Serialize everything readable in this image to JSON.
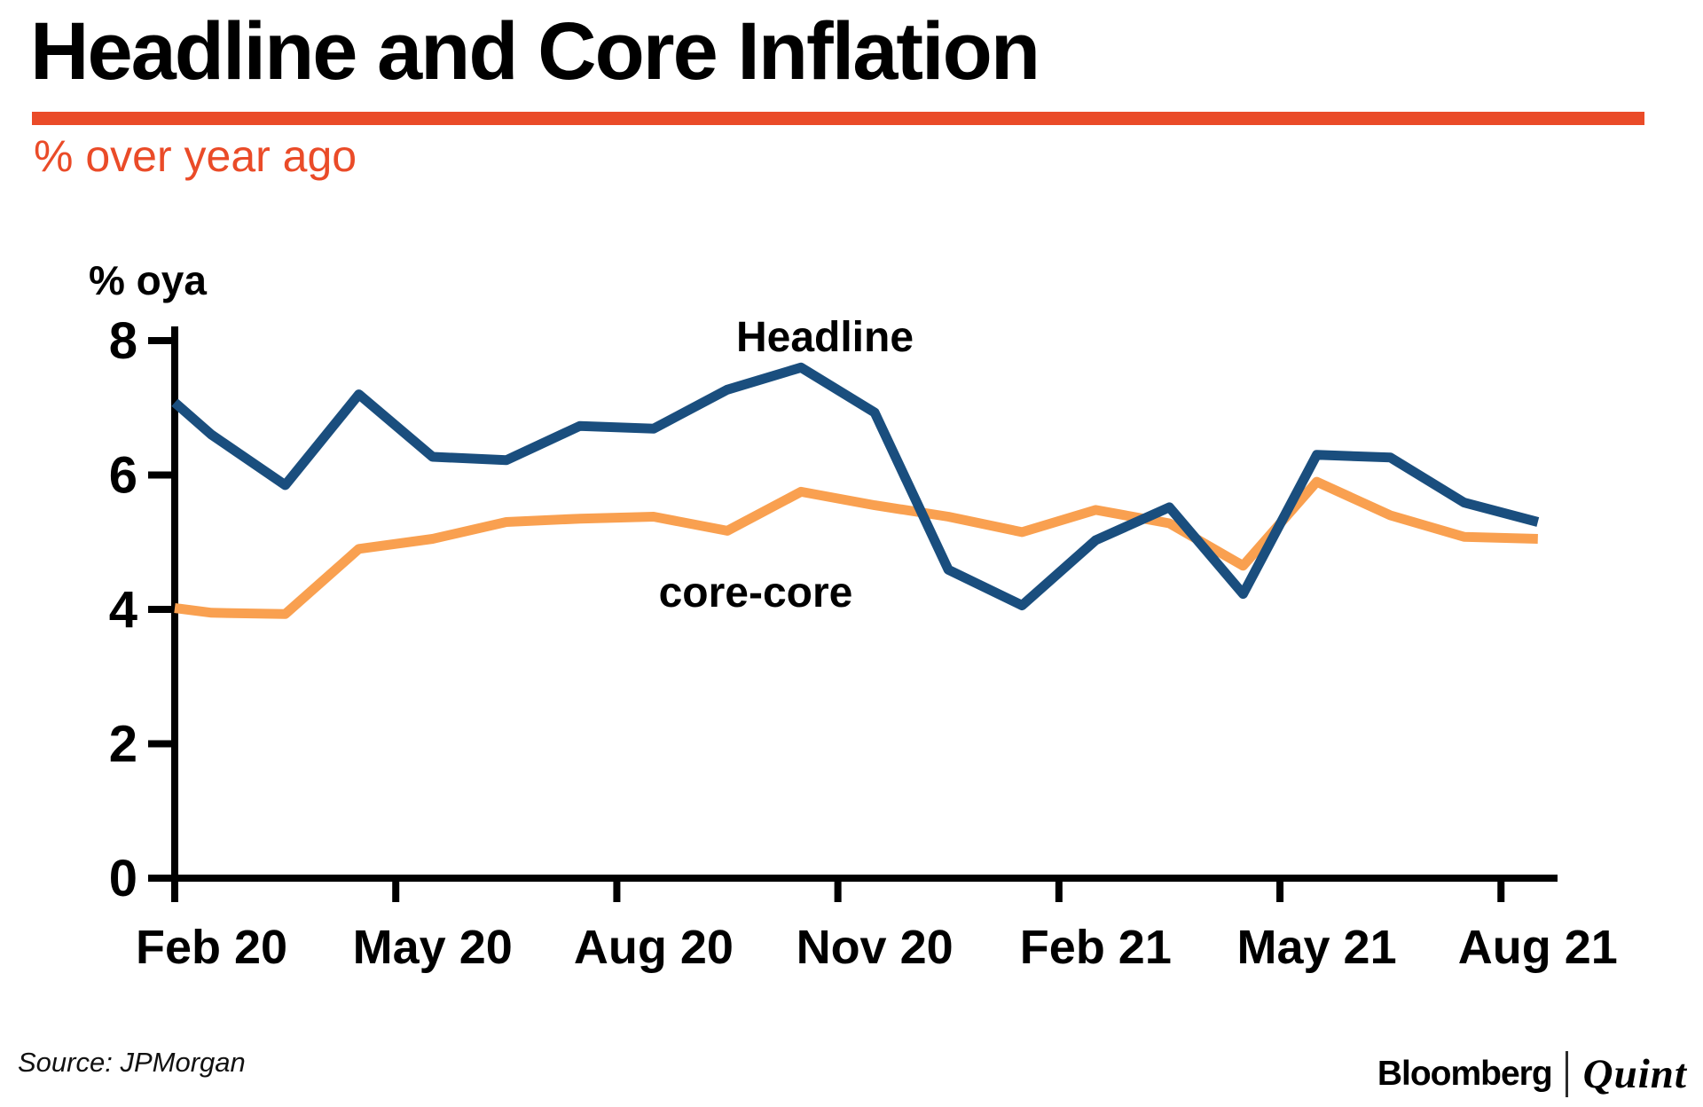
{
  "header": {
    "title": "Headline and Core Inflation",
    "subtitle": "% over year ago"
  },
  "footer": {
    "source": "Source: JPMorgan",
    "brand_bloomberg": "Bloomberg",
    "brand_quint": "Quint"
  },
  "colors": {
    "accent_orange_red": "#ea4b28",
    "headline_blue": "#1a4e7e",
    "core_orange": "#f9a050",
    "axis_black": "#000000"
  },
  "chart_data": {
    "type": "line",
    "title": "Headline and Core Inflation",
    "subtitle": "% over year ago",
    "y_axis_annotation": "% oya",
    "ylim": [
      0,
      8
    ],
    "y_ticks": [
      0,
      2,
      4,
      6,
      8
    ],
    "x_tick_labels": [
      "Feb 20",
      "May 20",
      "Aug 20",
      "Nov 20",
      "Feb 21",
      "May 21",
      "Aug 21"
    ],
    "categories": [
      "Feb 20",
      "Mar 20",
      "Apr 20",
      "May 20",
      "Jun 20",
      "Jul 20",
      "Aug 20",
      "Sep 20",
      "Oct 20",
      "Nov 20",
      "Dec 20",
      "Jan 21",
      "Feb 21",
      "Mar 21",
      "Apr 21",
      "May 21",
      "Jun 21",
      "Jul 21",
      "Aug 21"
    ],
    "grid": false,
    "legend_position": "inline-labels",
    "series": [
      {
        "name": "Headline",
        "color": "#1a4e7e",
        "axis_edge_value": 7.08,
        "values": [
          6.6,
          5.85,
          7.2,
          6.27,
          6.22,
          6.73,
          6.69,
          7.27,
          7.6,
          6.93,
          4.59,
          4.06,
          5.03,
          5.52,
          4.23,
          6.3,
          6.26,
          5.59,
          5.3
        ]
      },
      {
        "name": "core-core",
        "color": "#f9a050",
        "axis_edge_value": 4.02,
        "values": [
          3.95,
          3.93,
          4.9,
          5.05,
          5.3,
          5.35,
          5.38,
          5.17,
          5.75,
          5.55,
          5.38,
          5.15,
          5.48,
          5.28,
          4.65,
          5.9,
          5.4,
          5.08,
          5.05
        ]
      }
    ]
  }
}
